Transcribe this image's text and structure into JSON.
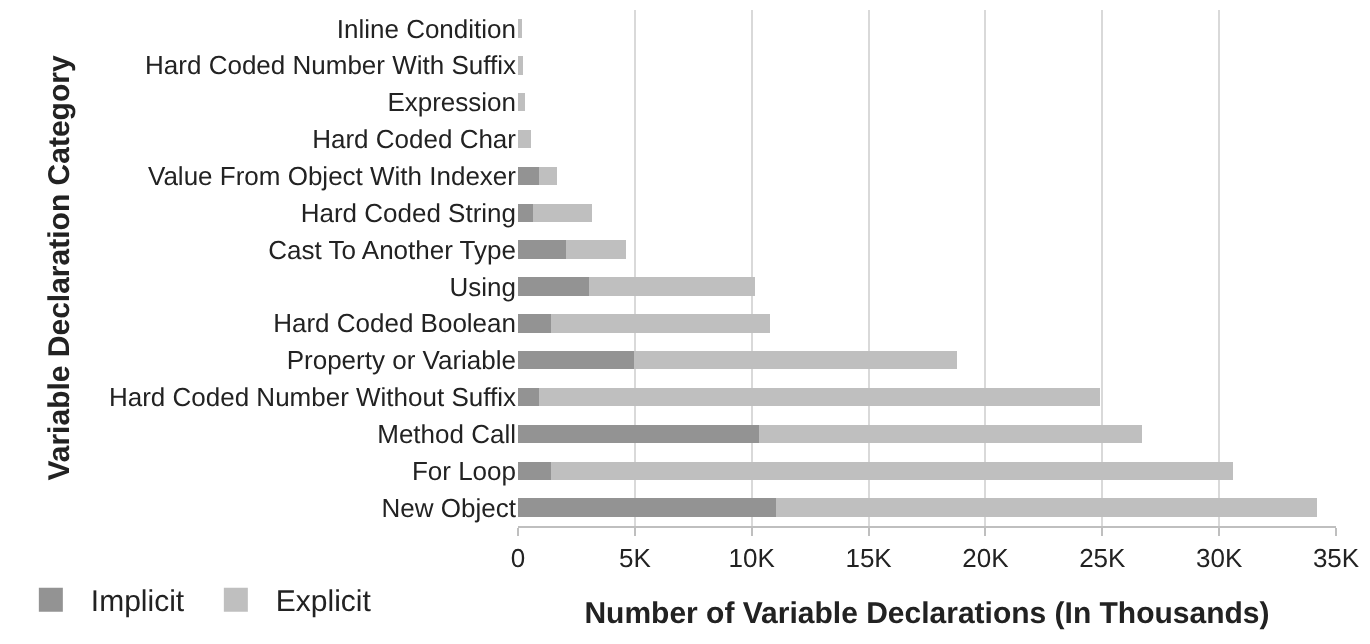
{
  "chart_data": {
    "type": "bar",
    "orientation": "horizontal",
    "stacked": true,
    "xlabel": "Number of Variable Declarations (In Thousands)",
    "ylabel": "Variable Declaration Category",
    "categories": [
      "Inline Condition",
      "Hard Coded Number With Suffix",
      "Expression",
      "Hard Coded Char",
      "Value From Object With Indexer",
      "Hard Coded String",
      "Cast To Another Type",
      "Using",
      "Hard Coded Boolean",
      "Property or Variable",
      "Hard Coded Number Without Suffix",
      "Method Call",
      "For Loop",
      "New Object"
    ],
    "series": [
      {
        "name": "Implicit",
        "color": "#939393",
        "values": [
          0,
          null,
          null,
          null,
          0.9,
          0.65,
          2.05,
          3.05,
          1.4,
          4.95,
          0.9,
          10.3,
          1.4,
          11.05
        ]
      },
      {
        "name": "Explicit",
        "color": "#bfbfbf",
        "values": [
          0.1,
          0.2,
          0.3,
          0.55,
          0.75,
          2.5,
          2.55,
          7.1,
          9.4,
          13.85,
          24.0,
          16.4,
          29.2,
          23.15
        ]
      }
    ],
    "xlim": [
      0,
      35
    ],
    "xticks": [
      0,
      {
        "value": 5,
        "label": "5K"
      },
      {
        "value": 10,
        "label": "10K"
      },
      {
        "value": 15,
        "label": "15K"
      },
      {
        "value": 20,
        "label": "20K"
      },
      {
        "value": 25,
        "label": "25K"
      },
      {
        "value": 30,
        "label": "30K"
      },
      {
        "value": 35,
        "label": "35K"
      }
    ],
    "grid": "x",
    "legend": "bottom left"
  }
}
